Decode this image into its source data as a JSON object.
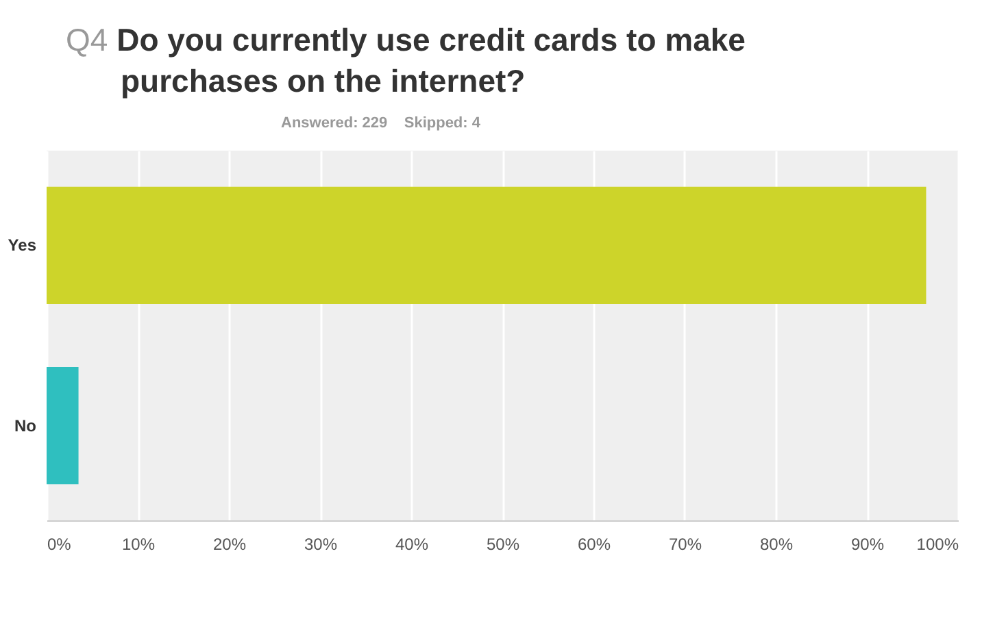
{
  "chart_data": {
    "type": "bar",
    "orientation": "horizontal",
    "title": "Q4 Do you currently use credit cards to make purchases on the internet?",
    "subtitle": "Answered: 229    Skipped: 4",
    "categories": [
      "Yes",
      "No"
    ],
    "values": [
      96.5,
      3.5
    ],
    "colors": [
      "#cdd42a",
      "#2fbfbf"
    ],
    "xlim": [
      0,
      100
    ],
    "xticks": [
      {
        "value": 0,
        "label": "0%"
      },
      {
        "value": 10,
        "label": "10%"
      },
      {
        "value": 20,
        "label": "20%"
      },
      {
        "value": 30,
        "label": "30%"
      },
      {
        "value": 40,
        "label": "40%"
      },
      {
        "value": 50,
        "label": "50%"
      },
      {
        "value": 60,
        "label": "60%"
      },
      {
        "value": 70,
        "label": "70%"
      },
      {
        "value": 80,
        "label": "80%"
      },
      {
        "value": 90,
        "label": "90%"
      },
      {
        "value": 100,
        "label": "100%"
      }
    ],
    "grid": true
  }
}
